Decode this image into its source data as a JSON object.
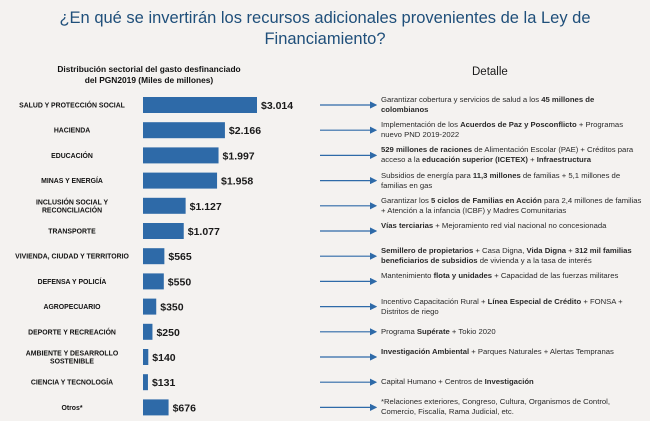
{
  "page": {
    "title_line1": "¿En qué se invertirán los recursos adicionales provenientes de la Ley de",
    "title_line2": "Financiamiento?",
    "detail_header": "Detalle"
  },
  "chart_data": {
    "type": "bar",
    "orientation": "horizontal",
    "title": "Distribución sectorial del gasto desfinanciado del PGN2019 (Miles de millones)",
    "title_line1": "Distribución sectorial del gasto desfinanciado",
    "title_line2": "del PGN2019 (Miles de millones)",
    "bar_color": "#2e6aa8",
    "arrow_color": "#2e6aa8",
    "categories": [
      [
        "SALUD Y PROTECCIÓN SOCIAL"
      ],
      [
        "HACIENDA"
      ],
      [
        "EDUCACIÓN"
      ],
      [
        "MINAS Y ENERGÍA"
      ],
      [
        "INCLUSIÓN SOCIAL Y",
        "RECONCILIACIÓN"
      ],
      [
        "TRANSPORTE"
      ],
      [
        "VIVIENDA, CIUDAD Y TERRITORIO"
      ],
      [
        "DEFENSA Y POLICÍA"
      ],
      [
        "AGROPECUARIO"
      ],
      [
        "DEPORTE Y RECREACIÓN"
      ],
      [
        "AMBIENTE Y DESARROLLO",
        "SOSTENIBLE"
      ],
      [
        "CIENCIA Y TECNOLOGÍA"
      ],
      [
        "Otros*"
      ]
    ],
    "values": [
      3014,
      2166,
      1997,
      1958,
      1127,
      1077,
      565,
      550,
      350,
      250,
      140,
      131,
      676
    ],
    "value_labels": [
      "$3.014",
      "$2.166",
      "$1.997",
      "$1.958",
      "$1.127",
      "$1.077",
      "$565",
      "$550",
      "$350",
      "$250",
      "$140",
      "$131",
      "$676"
    ],
    "xlim": [
      0,
      3014
    ]
  },
  "details": [
    [
      [
        "Garantizar cobertura y servicios de salud a los ",
        false
      ],
      [
        "45 millones de colombianos",
        true
      ]
    ],
    [
      [
        "Implementación de los ",
        false
      ],
      [
        "Acuerdos de Paz y Posconflicto",
        true
      ],
      [
        " + Programas nuevo PND 2019-2022",
        false
      ]
    ],
    [
      [
        "529 millones de raciones",
        true
      ],
      [
        " de Alimentación Escolar (PAE) + Créditos para acceso a la ",
        false
      ],
      [
        "educación superior (ICETEX)",
        true
      ],
      [
        " + ",
        false
      ],
      [
        "Infraestructura",
        true
      ]
    ],
    [
      [
        "Subsidios de energía para ",
        false
      ],
      [
        "11,3 millones",
        true
      ],
      [
        " de familias + 5,1 millones de familias en gas",
        false
      ]
    ],
    [
      [
        "Garantizar los ",
        false
      ],
      [
        "5 ciclos de Familias en Acción",
        true
      ],
      [
        " para 2,4 millones de familias + Atención a la infancia (ICBF) y Madres Comunitarias",
        false
      ]
    ],
    [
      [
        "Vías terciarias",
        true
      ],
      [
        " + Mejoramiento red vial nacional no concesionada",
        false
      ]
    ],
    [
      [
        "Semillero de propietarios",
        true
      ],
      [
        " + Casa Digna, ",
        false
      ],
      [
        "Vida Digna",
        true
      ],
      [
        " + ",
        false
      ],
      [
        "312 mil familias beneficiarios de subsidios",
        true
      ],
      [
        " de vivienda y a la tasa de interés",
        false
      ]
    ],
    [
      [
        "Mantenimiento ",
        false
      ],
      [
        "flota y unidades",
        true
      ],
      [
        " + Capacidad de las fuerzas militares",
        false
      ]
    ],
    [
      [
        "Incentivo Capacitación Rural + ",
        false
      ],
      [
        "Línea Especial de Crédito",
        true
      ],
      [
        " + FONSA + Distritos de riego",
        false
      ]
    ],
    [
      [
        "Programa ",
        false
      ],
      [
        "Supérate",
        true
      ],
      [
        " + Tokio 2020",
        false
      ]
    ],
    [
      [
        "Investigación Ambiental",
        true
      ],
      [
        " + Parques Naturales + Alertas Tempranas",
        false
      ]
    ],
    [
      [
        "Capital Humano + Centros de ",
        false
      ],
      [
        "Investigación",
        true
      ]
    ],
    [
      [
        "*Relaciones exteriores, Congreso, Cultura, Organismos de Control, Comercio, Fiscalía, Rama Judicial, etc.",
        false
      ]
    ]
  ]
}
